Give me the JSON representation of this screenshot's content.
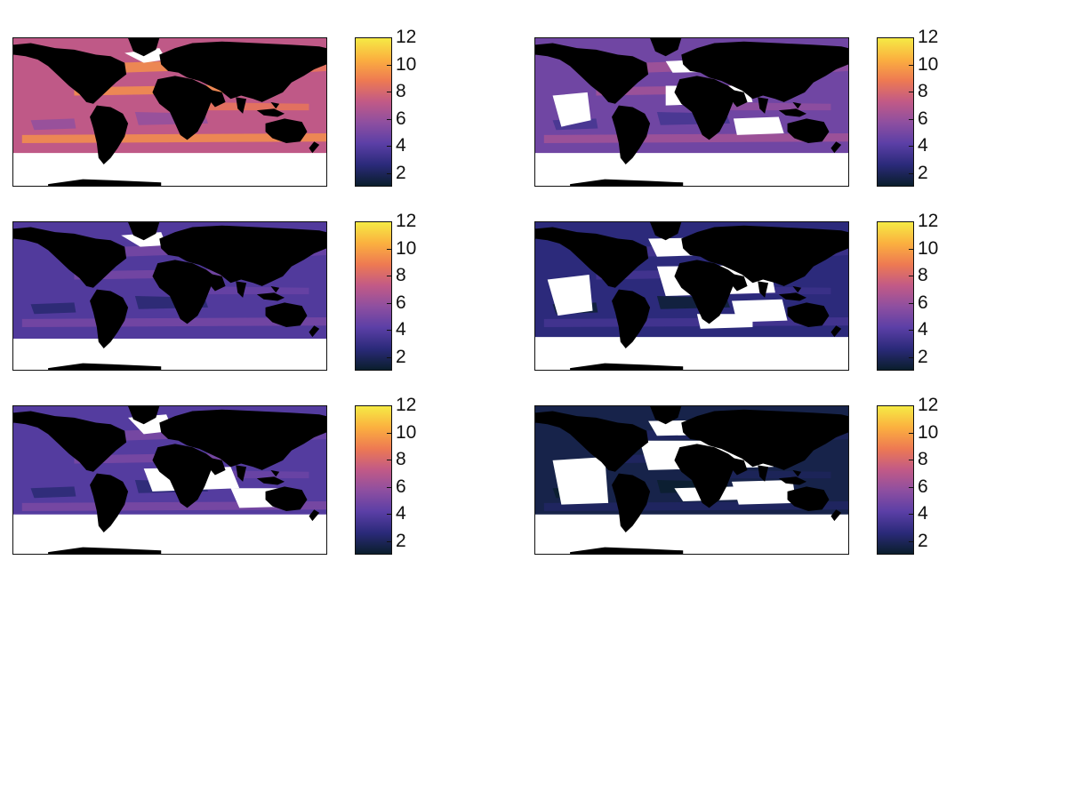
{
  "figure": {
    "panel_count": 6,
    "layout": "3 rows x 2 columns",
    "colormap": {
      "name": "thermal",
      "stops": [
        "#0a1e2c",
        "#2b2a7a",
        "#5b3fa6",
        "#8e4fa0",
        "#c25a86",
        "#ee7a52",
        "#fbb03f",
        "#f5ea45"
      ]
    },
    "land_color": "#000000",
    "missing_color": "#ffffff"
  },
  "panels": [
    {
      "id": "panel-r1-c1",
      "mean_level": 7.2,
      "colorbar": {
        "min": 1,
        "max": 12,
        "ticks": [
          "2",
          "4",
          "6",
          "8",
          "10",
          "12"
        ]
      }
    },
    {
      "id": "panel-r1-c2",
      "mean_level": 4.8,
      "colorbar": {
        "min": 1,
        "max": 12,
        "ticks": [
          "2",
          "4",
          "6",
          "8",
          "10",
          "12"
        ]
      }
    },
    {
      "id": "panel-r2-c1",
      "mean_level": 3.8,
      "colorbar": {
        "min": 1,
        "max": 12,
        "ticks": [
          "2",
          "4",
          "6",
          "8",
          "10",
          "12"
        ]
      }
    },
    {
      "id": "panel-r2-c2",
      "mean_level": 2.6,
      "colorbar": {
        "min": 1,
        "max": 12,
        "ticks": [
          "2",
          "4",
          "6",
          "8",
          "10",
          "12"
        ]
      }
    },
    {
      "id": "panel-r3-c1",
      "mean_level": 3.9,
      "colorbar": {
        "min": 1,
        "max": 12,
        "ticks": [
          "2",
          "4",
          "6",
          "8",
          "10",
          "12"
        ]
      }
    },
    {
      "id": "panel-r3-c2",
      "mean_level": 1.6,
      "colorbar": {
        "min": 1,
        "max": 12,
        "ticks": [
          "2",
          "4",
          "6",
          "8",
          "10",
          "12"
        ]
      }
    }
  ]
}
